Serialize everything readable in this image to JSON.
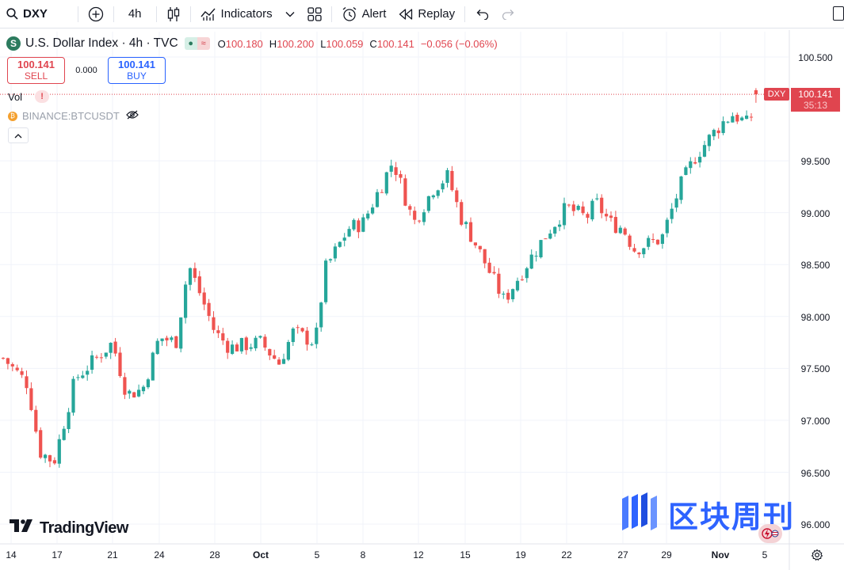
{
  "toolbar": {
    "symbol": "DXY",
    "interval": "4h",
    "indicators_label": "Indicators",
    "alert_label": "Alert",
    "replay_label": "Replay"
  },
  "legend": {
    "title": "U.S. Dollar Index · 4h · TVC",
    "badge_letter": "S",
    "open_key": "O",
    "open": "100.180",
    "high_key": "H",
    "high": "100.200",
    "low_key": "L",
    "low": "100.059",
    "close_key": "C",
    "close": "100.141",
    "change": "−0.056 (−0.06%)"
  },
  "trade": {
    "sell_price": "100.141",
    "sell_label": "SELL",
    "spread": "0.000",
    "buy_price": "100.141",
    "buy_label": "BUY"
  },
  "indicators": {
    "vol_label": "Vol",
    "vol_warning": "!",
    "compare_symbol": "BINANCE:BTCUSDT"
  },
  "price_scale": [
    "100.500",
    "99.500",
    "99.000",
    "98.500",
    "98.000",
    "97.500",
    "97.000",
    "96.500",
    "96.000"
  ],
  "last_price": {
    "symbol_tag": "DXY",
    "value": "100.141",
    "countdown": "35:13"
  },
  "time_axis": [
    {
      "label": "14",
      "bold": false
    },
    {
      "label": "17",
      "bold": false
    },
    {
      "label": "21",
      "bold": false
    },
    {
      "label": "24",
      "bold": false
    },
    {
      "label": "28",
      "bold": false
    },
    {
      "label": "Oct",
      "bold": true
    },
    {
      "label": "5",
      "bold": false
    },
    {
      "label": "8",
      "bold": false
    },
    {
      "label": "12",
      "bold": false
    },
    {
      "label": "15",
      "bold": false
    },
    {
      "label": "19",
      "bold": false
    },
    {
      "label": "22",
      "bold": false
    },
    {
      "label": "27",
      "bold": false
    },
    {
      "label": "29",
      "bold": false
    },
    {
      "label": "Nov",
      "bold": true
    },
    {
      "label": "5",
      "bold": false
    }
  ],
  "branding": {
    "tradingview": "TradingView",
    "watermark_text": "区块周刊"
  },
  "colors": {
    "up": "#26a69a",
    "down": "#ef5350",
    "last_price": "#e0454f",
    "buy": "#2962ff"
  },
  "chart_data": {
    "type": "candlestick",
    "symbol": "DXY",
    "interval": "4h",
    "ylim": [
      96.0,
      100.6
    ],
    "waypoints": [
      {
        "x": "14",
        "y": 97.6
      },
      {
        "x": "15",
        "y": 97.35
      },
      {
        "x": "16",
        "y": 96.7
      },
      {
        "x": "17",
        "y": 96.6
      },
      {
        "x": "18",
        "y": 97.4
      },
      {
        "x": "21",
        "y": 97.75
      },
      {
        "x": "22",
        "y": 97.25
      },
      {
        "x": "23",
        "y": 97.3
      },
      {
        "x": "24",
        "y": 97.8
      },
      {
        "x": "25",
        "y": 97.75
      },
      {
        "x": "26",
        "y": 98.5
      },
      {
        "x": "27",
        "y": 98.15
      },
      {
        "x": "28",
        "y": 97.85
      },
      {
        "x": "29",
        "y": 97.7
      },
      {
        "x": "Oct",
        "y": 97.75
      },
      {
        "x": "3",
        "y": 97.55
      },
      {
        "x": "4",
        "y": 97.85
      },
      {
        "x": "5",
        "y": 97.75
      },
      {
        "x": "6",
        "y": 98.45
      },
      {
        "x": "7",
        "y": 98.85
      },
      {
        "x": "8",
        "y": 98.9
      },
      {
        "x": "9",
        "y": 99.5
      },
      {
        "x": "10",
        "y": 98.9
      },
      {
        "x": "11",
        "y": 99.25
      },
      {
        "x": "13",
        "y": 99.35
      },
      {
        "x": "14",
        "y": 98.95
      },
      {
        "x": "15",
        "y": 98.7
      },
      {
        "x": "17",
        "y": 98.15
      },
      {
        "x": "18",
        "y": 98.45
      },
      {
        "x": "21",
        "y": 98.8
      },
      {
        "x": "22",
        "y": 99.05
      },
      {
        "x": "23",
        "y": 98.95
      },
      {
        "x": "24",
        "y": 99.1
      },
      {
        "x": "25",
        "y": 98.9
      },
      {
        "x": "27",
        "y": 98.85
      },
      {
        "x": "28",
        "y": 98.65
      },
      {
        "x": "29",
        "y": 98.75
      },
      {
        "x": "30",
        "y": 99.25
      },
      {
        "x": "31",
        "y": 99.55
      },
      {
        "x": "Nov",
        "y": 99.85
      },
      {
        "x": "3",
        "y": 99.95
      },
      {
        "x": "4",
        "y": 99.85
      },
      {
        "x": "5",
        "y": 100.141
      }
    ]
  }
}
